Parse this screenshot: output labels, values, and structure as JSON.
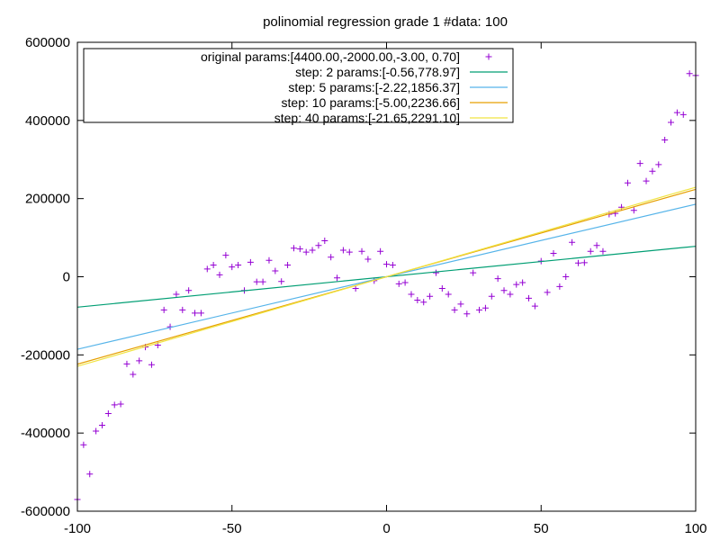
{
  "chart_data": {
    "type": "scatter",
    "title": "polinomial regression grade 1 #data: 100",
    "xlabel": "",
    "ylabel": "",
    "xlim": [
      -100,
      100
    ],
    "ylim": [
      -600000,
      600000
    ],
    "x_ticks": [
      -100,
      -50,
      0,
      50,
      100
    ],
    "x_tick_labels": [
      "-100",
      "-50",
      "0",
      "50",
      "100"
    ],
    "y_ticks": [
      -600000,
      -400000,
      -200000,
      0,
      200000,
      400000,
      600000
    ],
    "y_tick_labels": [
      "-600000",
      "-400000",
      "-200000",
      "0",
      "200000",
      "400000",
      "600000"
    ],
    "grid": false,
    "legend_position": "top-left",
    "series": [
      {
        "name": "original params:[4400.00,-2000.00,-3.00, 0.70]",
        "kind": "points",
        "marker": "+",
        "color": "#9400d3",
        "x": [
          -100,
          -98,
          -96,
          -94,
          -92,
          -90,
          -88,
          -86,
          -84,
          -82,
          -80,
          -78,
          -76,
          -74,
          -72,
          -70,
          -68,
          -66,
          -64,
          -62,
          -60,
          -58,
          -56,
          -54,
          -52,
          -50,
          -48,
          -46,
          -44,
          -42,
          -40,
          -38,
          -36,
          -34,
          -32,
          -30,
          -28,
          -26,
          -24,
          -22,
          -20,
          -18,
          -16,
          -14,
          -12,
          -10,
          -8,
          -6,
          -4,
          -2,
          0,
          2,
          4,
          6,
          8,
          10,
          12,
          14,
          16,
          18,
          20,
          22,
          24,
          26,
          28,
          30,
          32,
          34,
          36,
          38,
          40,
          42,
          44,
          46,
          48,
          50,
          52,
          54,
          56,
          58,
          60,
          62,
          64,
          66,
          68,
          70,
          72,
          74,
          76,
          78,
          80,
          82,
          84,
          86,
          88,
          90,
          92,
          94,
          96,
          98,
          100
        ],
        "y": [
          -570000,
          -430000,
          -505000,
          -395000,
          -380000,
          -350000,
          -328000,
          -326000,
          -223000,
          -250000,
          -215000,
          -180000,
          -225000,
          -175000,
          -85000,
          -128000,
          -45000,
          -85000,
          -35000,
          -93000,
          -93000,
          20000,
          30000,
          5000,
          55000,
          25000,
          30000,
          -35000,
          37000,
          -13000,
          -13000,
          42000,
          15000,
          -12000,
          30000,
          73000,
          71000,
          63000,
          68000,
          80000,
          92000,
          50000,
          -3000,
          68000,
          63000,
          -30000,
          65000,
          45000,
          -10000,
          65000,
          32000,
          30000,
          -18000,
          -15000,
          -45000,
          -60000,
          -65000,
          -50000,
          10000,
          -30000,
          -45000,
          -85000,
          -70000,
          -95000,
          10000,
          -85000,
          -80000,
          -50000,
          -5000,
          -35000,
          -45000,
          -20000,
          -15000,
          -55000,
          -75000,
          40000,
          -40000,
          60000,
          -25000,
          0,
          88000,
          35000,
          36000,
          65000,
          80000,
          65000,
          160000,
          162000,
          178000,
          240000,
          170000,
          290000,
          245000,
          270000,
          287000,
          350000,
          395000,
          420000,
          415000,
          520000,
          515000
        ]
      },
      {
        "name": "step:   2 params:[-0.56,778.97]",
        "kind": "line",
        "color": "#009e73",
        "slope": 778.97,
        "intercept": -0.56
      },
      {
        "name": "step:   5 params:[-2.22,1856.37]",
        "kind": "line",
        "color": "#56b4e9",
        "slope": 1856.37,
        "intercept": -2.22
      },
      {
        "name": "step:  10 params:[-5.00,2236.66]",
        "kind": "line",
        "color": "#e69f00",
        "slope": 2236.66,
        "intercept": -5.0
      },
      {
        "name": "step:  40 params:[-21.65,2291.10]",
        "kind": "line",
        "color": "#f0e442",
        "slope": 2291.1,
        "intercept": -21.65
      }
    ]
  }
}
